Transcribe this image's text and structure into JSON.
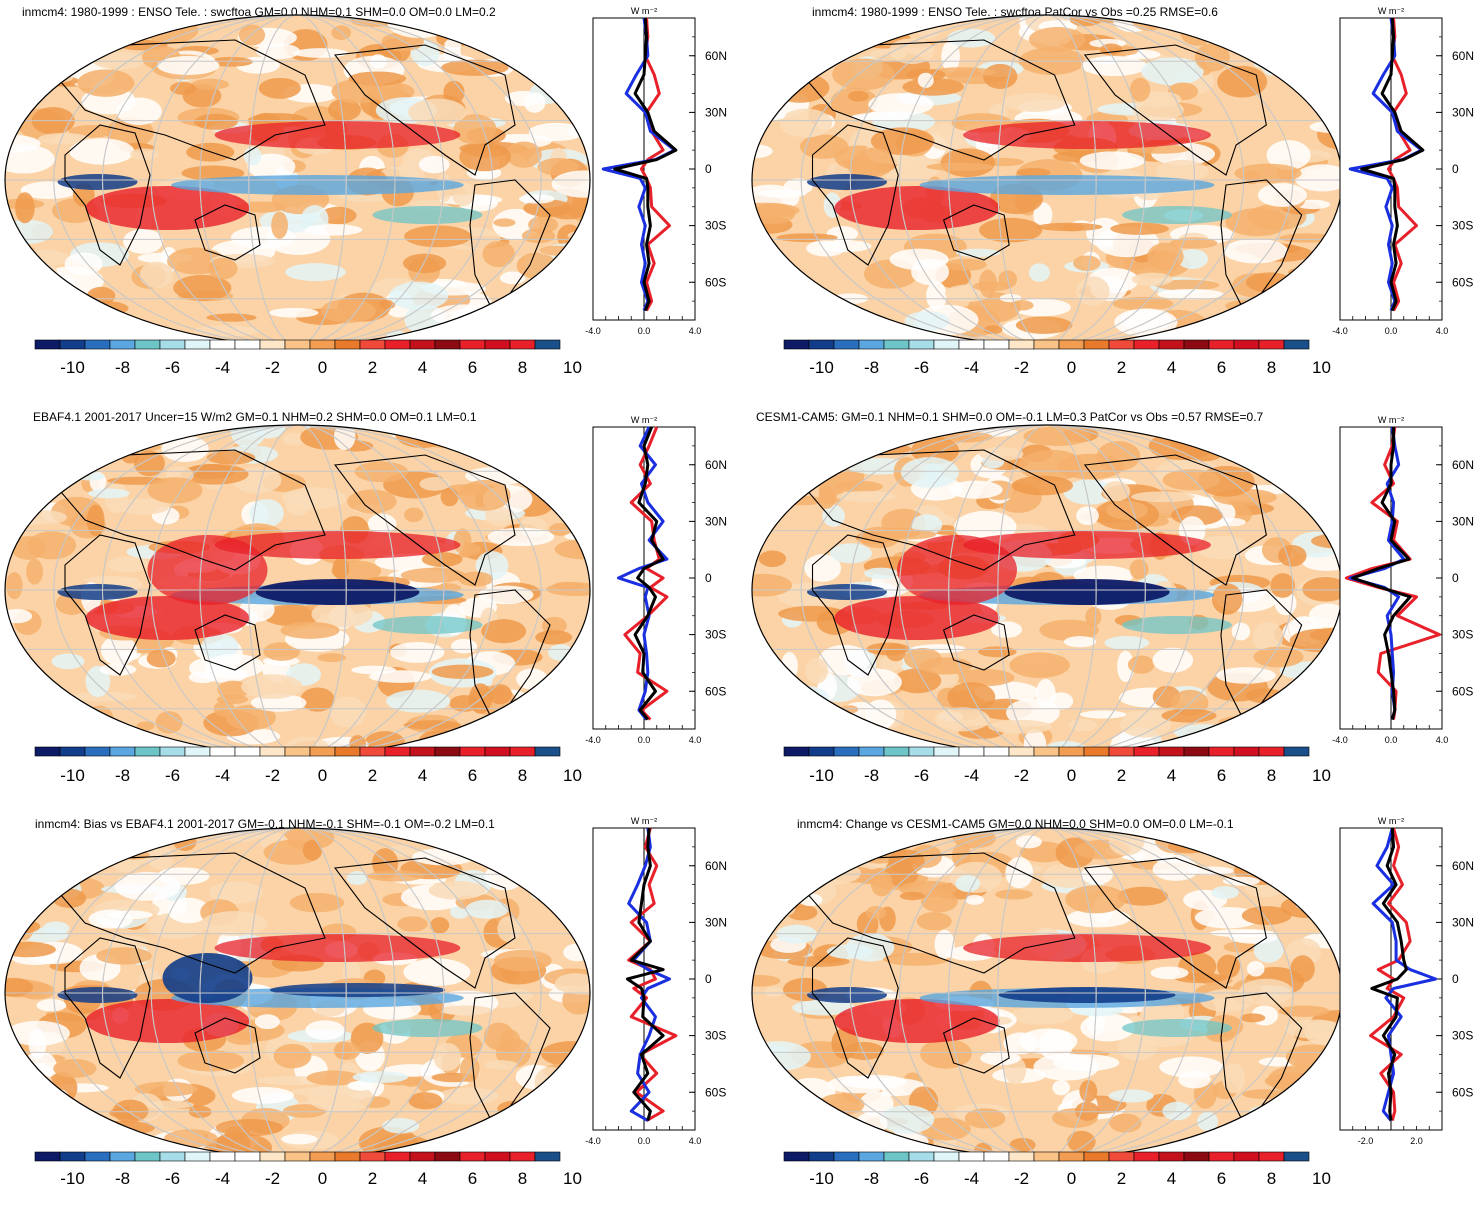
{
  "colors": {
    "scale": [
      "#0d1a66",
      "#123d8a",
      "#2a6fbf",
      "#5aa6e0",
      "#6ec5c8",
      "#a6dde8",
      "#dff5f8",
      "#ffffff",
      "#ffffff",
      "#fde7c8",
      "#f9c287",
      "#f29d52",
      "#e97a2c",
      "#f04a3a",
      "#e8202a",
      "#c3121c",
      "#8c0a12",
      "#e8202a",
      "#d01020",
      "#e8202a",
      "#1a4f8a"
    ],
    "model_line": "#e8202a",
    "obs_line": "#1a2fe0",
    "ref_line": "#000000",
    "land_outline": "#000000"
  },
  "colorbar_labels": [
    "-10",
    "-8",
    "-6",
    "-4",
    "-2",
    "0",
    "2",
    "4",
    "6",
    "8",
    "10"
  ],
  "zonal": {
    "unit": "W m⁻²",
    "lat_labels": [
      "60N",
      "30N",
      "0",
      "30S",
      "60S"
    ],
    "lat_values": [
      60,
      30,
      0,
      -30,
      -60
    ]
  },
  "panels": [
    {
      "title": "inmcm4: 1980-1999 : ENSO Tele. : swcftoa GM=0.0 NHM=0.1 SHM=0.0 OM=0.0 LM=0.2",
      "xlabels": [
        "-4.0",
        "0.0",
        "4.0"
      ],
      "xrange": [
        -4,
        4
      ],
      "chart_data": {
        "type": "line",
        "lat": [
          80,
          70,
          60,
          50,
          40,
          30,
          20,
          10,
          5,
          0,
          -5,
          -10,
          -20,
          -30,
          -40,
          -50,
          -60,
          -70,
          -75
        ],
        "series": [
          {
            "name": "model",
            "values": [
              0.2,
              0.3,
              0.1,
              0.8,
              1.2,
              0.2,
              0.6,
              1.5,
              0.3,
              -0.2,
              0.2,
              0.5,
              0.6,
              2.0,
              0.3,
              0.8,
              0.2,
              0.6,
              0.2
            ]
          },
          {
            "name": "obs",
            "values": [
              0.0,
              0.2,
              0.3,
              -0.6,
              -1.4,
              0.1,
              0.5,
              2.4,
              0.9,
              -3.2,
              -0.3,
              0.1,
              -0.4,
              0.1,
              -0.2,
              0.1,
              -0.2,
              0.3,
              0.0
            ]
          },
          {
            "name": "ref",
            "values": [
              0.1,
              0.2,
              0.1,
              0.0,
              -0.7,
              0.3,
              0.8,
              2.5,
              1.0,
              -2.3,
              0.2,
              0.3,
              0.3,
              0.5,
              0.2,
              0.4,
              0.0,
              0.4,
              0.1
            ]
          }
        ]
      }
    },
    {
      "title": "inmcm4: 1980-1999 : ENSO Tele. : swcftoa PatCor vs Obs =0.25 RMSE=0.6",
      "xlabels": [
        "-4.0",
        "0.0",
        "4.0"
      ],
      "xrange": [
        -4,
        4
      ],
      "chart_data": {
        "type": "line",
        "lat": [
          80,
          70,
          60,
          50,
          40,
          30,
          20,
          10,
          5,
          0,
          -5,
          -10,
          -20,
          -30,
          -40,
          -50,
          -60,
          -70,
          -75
        ],
        "series": [
          {
            "name": "model",
            "values": [
              0.2,
              0.3,
              0.1,
              0.8,
              1.2,
              0.2,
              0.6,
              1.5,
              0.3,
              -0.2,
              0.2,
              0.5,
              0.6,
              2.0,
              0.3,
              0.8,
              0.2,
              0.6,
              0.2
            ]
          },
          {
            "name": "obs",
            "values": [
              0.0,
              0.2,
              0.3,
              -0.6,
              -1.4,
              0.1,
              0.5,
              2.4,
              0.9,
              -3.2,
              -0.3,
              0.1,
              -0.4,
              0.1,
              -0.2,
              0.1,
              -0.2,
              0.3,
              0.0
            ]
          },
          {
            "name": "ref",
            "values": [
              0.1,
              0.2,
              0.1,
              0.0,
              -0.7,
              0.3,
              0.8,
              2.5,
              1.0,
              -2.3,
              0.2,
              0.3,
              0.3,
              0.5,
              0.2,
              0.4,
              0.0,
              0.4,
              0.1
            ]
          }
        ]
      }
    },
    {
      "title": "EBAF4.1 2001-2017 Uncer=15 W/m2 GM=0.1 NHM=0.2 SHM=0.0 OM=0.1 LM=0.1",
      "xlabels": [
        "-4.0",
        "0.0",
        "4.0"
      ],
      "xrange": [
        -4,
        4
      ],
      "chart_data": {
        "type": "line",
        "lat": [
          80,
          70,
          60,
          50,
          40,
          30,
          20,
          10,
          5,
          0,
          -5,
          -10,
          -20,
          -30,
          -40,
          -50,
          -60,
          -70,
          -75
        ],
        "series": [
          {
            "name": "model",
            "values": [
              1.0,
              0.4,
              -0.3,
              0.5,
              -1.0,
              0.6,
              0.8,
              1.2,
              0.2,
              1.5,
              0.5,
              1.8,
              0.3,
              -1.5,
              -0.3,
              -0.5,
              1.8,
              -0.2,
              0.5
            ]
          },
          {
            "name": "obs",
            "values": [
              0.4,
              -0.3,
              0.9,
              -0.2,
              0.3,
              1.5,
              0.4,
              1.8,
              -0.4,
              -2.0,
              0.3,
              0.1,
              0.4,
              0.0,
              0.2,
              0.3,
              0.1,
              -0.4,
              0.2
            ]
          },
          {
            "name": "ref",
            "values": [
              0.6,
              0.0,
              0.3,
              0.1,
              -0.4,
              1.0,
              0.6,
              1.5,
              0.0,
              -0.5,
              0.4,
              0.9,
              0.3,
              -0.7,
              0.0,
              -0.1,
              0.9,
              -0.3,
              0.3
            ]
          }
        ]
      }
    },
    {
      "title": "CESM1-CAM5: GM=0.1 NHM=0.1 SHM=0.0 OM=-0.1 LM=0.3 PatCor vs Obs =0.57 RMSE=0.7",
      "xlabels": [
        "-4.0",
        "0.0",
        "4.0"
      ],
      "xrange": [
        -4,
        4
      ],
      "chart_data": {
        "type": "line",
        "lat": [
          80,
          70,
          60,
          50,
          40,
          30,
          20,
          10,
          5,
          0,
          -5,
          -10,
          -20,
          -30,
          -40,
          -50,
          -60,
          -70,
          -75
        ],
        "series": [
          {
            "name": "model",
            "values": [
              0.3,
              0.1,
              -0.5,
              0.2,
              -1.5,
              0.5,
              0.2,
              1.5,
              -1.5,
              -3.5,
              -1.0,
              2.0,
              0.5,
              3.8,
              -0.8,
              -1.0,
              0.4,
              0.3,
              0.2
            ]
          },
          {
            "name": "obs",
            "values": [
              0.1,
              0.3,
              0.6,
              -0.3,
              0.2,
              0.1,
              -0.2,
              1.0,
              -0.5,
              -3.2,
              -0.5,
              0.6,
              -0.3,
              0.0,
              0.1,
              0.2,
              0.1,
              0.3,
              0.1
            ]
          },
          {
            "name": "ref",
            "values": [
              0.2,
              0.2,
              0.0,
              0.0,
              -0.7,
              0.3,
              0.0,
              1.4,
              -1.0,
              -3.0,
              -0.8,
              1.5,
              0.2,
              -0.5,
              -0.2,
              0.0,
              0.2,
              0.3,
              0.1
            ]
          }
        ]
      }
    },
    {
      "title": "inmcm4: Bias vs EBAF4.1 2001-2017 GM=-0.1 NHM=-0.1 SHM=-0.1 OM=-0.2 LM=0.1",
      "xlabels": [
        "-4.0",
        "0.0",
        "4.0"
      ],
      "xrange": [
        -4,
        4
      ],
      "chart_data": {
        "type": "line",
        "lat": [
          80,
          70,
          60,
          50,
          40,
          30,
          20,
          10,
          5,
          0,
          -5,
          -10,
          -20,
          -30,
          -40,
          -50,
          -60,
          -70,
          -75
        ],
        "series": [
          {
            "name": "model",
            "values": [
              0.5,
              0.1,
              1.0,
              0.4,
              0.8,
              -1.0,
              0.5,
              -1.2,
              0.5,
              0.9,
              -0.8,
              0.2,
              -1.0,
              2.5,
              -0.3,
              1.0,
              -0.6,
              1.5,
              0.2
            ]
          },
          {
            "name": "obs",
            "values": [
              0.3,
              0.5,
              0.1,
              -0.5,
              -1.2,
              0.2,
              0.5,
              -0.8,
              0.3,
              2.0,
              0.3,
              -0.2,
              0.9,
              0.4,
              -0.3,
              -0.5,
              0.4,
              -1.0,
              0.3
            ]
          },
          {
            "name": "ref",
            "values": [
              0.4,
              0.3,
              0.5,
              0.0,
              -0.2,
              -0.4,
              0.5,
              -1.0,
              1.5,
              -1.3,
              -0.2,
              0.0,
              -0.1,
              1.5,
              -0.2,
              0.3,
              -0.8,
              0.5,
              0.3
            ]
          }
        ]
      }
    },
    {
      "title": "inmcm4: Change vs CESM1-CAM5 GM=0.0 NHM=0.0 SHM=0.0 OM=0.0 LM=-0.1",
      "xlabels": [
        "-2.0",
        "2.0"
      ],
      "xrange": [
        -4,
        4
      ],
      "chart_data": {
        "type": "line",
        "lat": [
          80,
          70,
          60,
          50,
          40,
          30,
          20,
          10,
          5,
          0,
          -5,
          -10,
          -20,
          -30,
          -40,
          -50,
          -60,
          -70,
          -75
        ],
        "series": [
          {
            "name": "model",
            "values": [
              0.2,
              0.6,
              0.2,
              0.9,
              -0.2,
              1.2,
              1.5,
              0.6,
              -1.0,
              0.2,
              -0.3,
              1.0,
              0.2,
              -1.6,
              0.8,
              -0.8,
              0.2,
              0.3,
              0.1
            ]
          },
          {
            "name": "obs",
            "values": [
              0.1,
              -0.3,
              -1.1,
              0.2,
              -1.4,
              0.1,
              0.4,
              0.4,
              1.5,
              3.5,
              0.2,
              -0.4,
              0.8,
              -0.2,
              0.0,
              0.2,
              -0.2,
              -0.6,
              0.0
            ]
          },
          {
            "name": "ref",
            "values": [
              0.1,
              0.2,
              -0.3,
              0.4,
              -0.6,
              0.5,
              0.8,
              1.0,
              1.2,
              0.5,
              -1.5,
              0.5,
              0.4,
              -0.6,
              0.3,
              -0.2,
              0.0,
              -0.1,
              0.0
            ]
          }
        ]
      }
    }
  ]
}
